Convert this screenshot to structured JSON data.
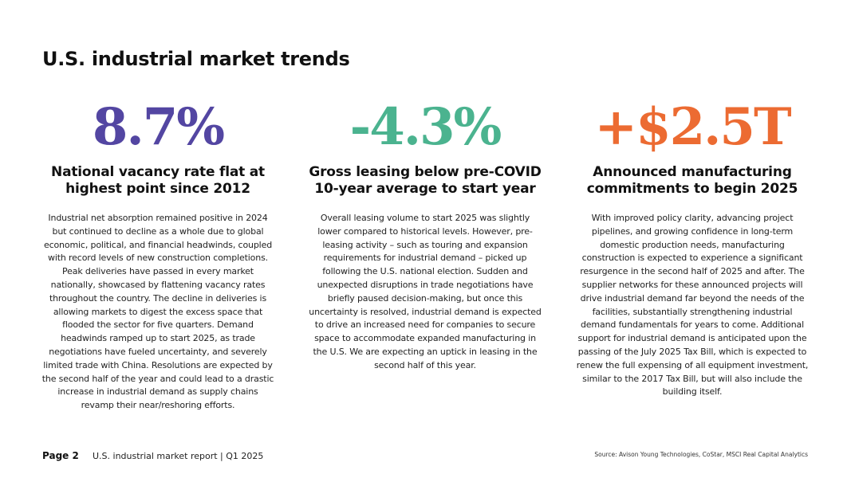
{
  "page": {
    "title": "U.S. industrial market trends"
  },
  "columns": [
    {
      "stat": "8.7%",
      "heading": "National vacancy rate flat at highest point since 2012",
      "body": "Industrial net absorption remained positive in 2024 but continued to decline as a whole due to global economic, political, and financial headwinds, coupled with record levels of new construction completions. Peak deliveries have passed in every market nationally, showcased by flattening vacancy rates throughout the country. The decline in deliveries is allowing markets to digest the excess space that flooded the sector for five quarters. Demand headwinds ramped up to start 2025, as trade negotiations have fueled uncertainty, and severely limited trade with China. Resolutions are expected by the second half of the year and could lead to a drastic increase in industrial demand as supply chains revamp their near/reshoring efforts.",
      "color": "#5346a2"
    },
    {
      "stat": "-4.3%",
      "heading": "Gross leasing below pre-COVID 10-year average to start year",
      "body": "Overall leasing volume to start 2025 was slightly lower compared to historical levels. However, pre-leasing activity – such as touring and expansion requirements for industrial demand – picked up following the U.S. national election. Sudden and unexpected disruptions in trade negotiations have briefly paused decision-making, but once this uncertainty is resolved, industrial demand is expected to drive an increased need for companies to secure space to accommodate expanded manufacturing in the U.S. We are expecting an uptick in leasing in the second half of this year.",
      "color": "#4bb38f"
    },
    {
      "stat": "+$2.5T",
      "heading": "Announced manufacturing commitments to begin 2025",
      "body": "With improved policy clarity, advancing project pipelines, and growing confidence in long-term domestic production needs, manufacturing construction is expected to experience a significant resurgence in the second half of 2025 and after. The supplier networks for these announced projects will drive industrial demand far beyond the needs of the facilities, substantially strengthening industrial demand fundamentals for years to come. Additional support for industrial demand is anticipated upon the passing of the July 2025 Tax Bill, which is expected to renew the full expensing of all equipment investment, similar to the 2017 Tax Bill, but will also include the building itself.",
      "color": "#ec6b32"
    }
  ],
  "footer": {
    "page_label": "Page 2",
    "report_label": "U.S. industrial market report | Q1 2025",
    "source": "Source: Avison Young Technologies, CoStar, MSCI Real Capital Analytics"
  }
}
